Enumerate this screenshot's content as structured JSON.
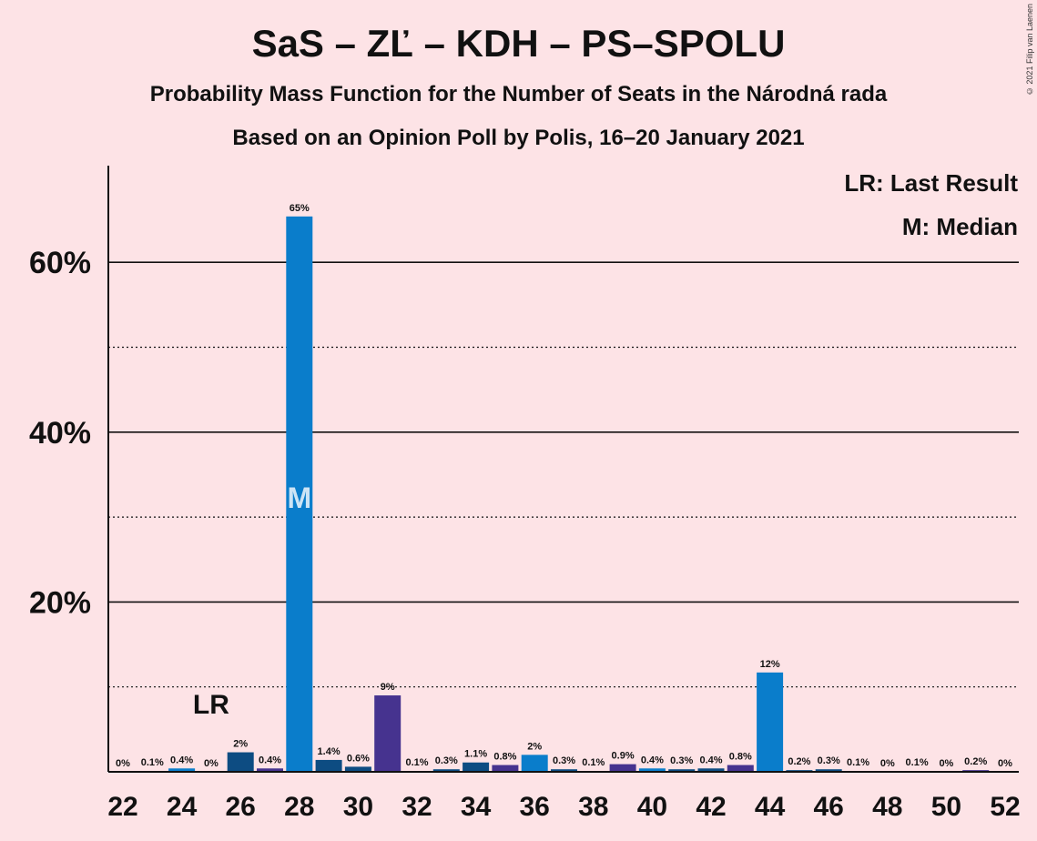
{
  "title": "SaS – ZĽ – KDH – PS–SPOLU",
  "subtitle1": "Probability Mass Function for the Number of Seats in the Národná rada",
  "subtitle2": "Based on an Opinion Poll by Polis, 16–20 January 2021",
  "copyright": "© 2021 Filip van Laenen",
  "legend": {
    "lr": "LR: Last Result",
    "median": "M: Median"
  },
  "lr_marker": {
    "text": "LR",
    "seat": 25
  },
  "median_marker": {
    "text": "M",
    "seat": 28
  },
  "colors": {
    "background": "#fde3e6",
    "blue": "#0a7dcb",
    "navy": "#0d4c82",
    "purple": "#46338f"
  },
  "chart_data": {
    "type": "bar",
    "x": [
      22,
      23,
      24,
      25,
      26,
      27,
      28,
      29,
      30,
      31,
      32,
      33,
      34,
      35,
      36,
      37,
      38,
      39,
      40,
      41,
      42,
      43,
      44,
      45,
      46,
      47,
      48,
      49,
      50,
      51,
      52
    ],
    "values": [
      0,
      0.1,
      0.4,
      0,
      2.3,
      0.4,
      65.4,
      1.4,
      0.6,
      9.0,
      0.1,
      0.3,
      1.1,
      0.8,
      2.0,
      0.3,
      0.1,
      0.9,
      0.4,
      0.3,
      0.4,
      0.8,
      11.7,
      0.2,
      0.3,
      0.1,
      0,
      0.1,
      0,
      0.2,
      0
    ],
    "labels": [
      "0%",
      "0.1%",
      "0.4%",
      "0%",
      "2%",
      "0.4%",
      "65%",
      "1.4%",
      "0.6%",
      "9%",
      "0.1%",
      "0.3%",
      "1.1%",
      "0.8%",
      "2%",
      "0.3%",
      "0.1%",
      "0.9%",
      "0.4%",
      "0.3%",
      "0.4%",
      "0.8%",
      "12%",
      "0.2%",
      "0.3%",
      "0.1%",
      "0%",
      "0.1%",
      "0%",
      "0.2%",
      "0%"
    ],
    "bar_colors": [
      "blue",
      "navy",
      "blue",
      "navy",
      "navy",
      "purple",
      "blue",
      "navy",
      "navy",
      "purple",
      "blue",
      "navy",
      "navy",
      "purple",
      "blue",
      "navy",
      "navy",
      "purple",
      "blue",
      "navy",
      "navy",
      "purple",
      "blue",
      "navy",
      "navy",
      "purple",
      "blue",
      "navy",
      "navy",
      "purple",
      "blue"
    ],
    "x_tick_labels": [
      "22",
      "24",
      "26",
      "28",
      "30",
      "32",
      "34",
      "36",
      "38",
      "40",
      "42",
      "44",
      "46",
      "48",
      "50",
      "52"
    ],
    "y_ticks": [
      {
        "value": 20,
        "label": "20%"
      },
      {
        "value": 40,
        "label": "40%"
      },
      {
        "value": 60,
        "label": "60%"
      }
    ],
    "y_minor_gridlines": [
      10,
      30,
      50
    ],
    "ylim": [
      0,
      71.4
    ],
    "grid": true,
    "legend_position": "top-right"
  }
}
